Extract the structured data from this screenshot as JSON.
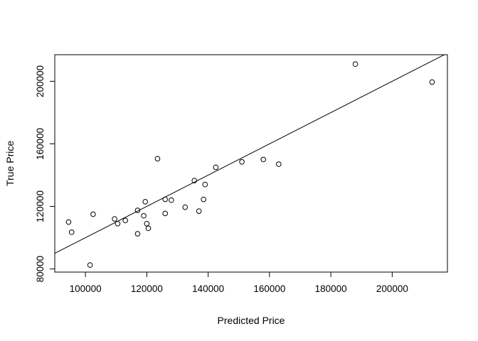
{
  "chart_data": {
    "type": "scatter",
    "title": "",
    "xlabel": "Predicted Price",
    "ylabel": "True Price",
    "xlim": [
      90000,
      218000
    ],
    "ylim": [
      78000,
      217000
    ],
    "x_ticks": [
      100000,
      120000,
      140000,
      160000,
      180000,
      200000
    ],
    "y_ticks": [
      80000,
      120000,
      160000,
      200000
    ],
    "x_tick_labels": [
      "100000",
      "120000",
      "140000",
      "160000",
      "180000",
      "200000"
    ],
    "y_tick_labels": [
      "80000",
      "120000",
      "160000",
      "200000"
    ],
    "grid": false,
    "legend": false,
    "fit_line": {
      "slope": 1.0,
      "intercept": 0
    },
    "points": [
      {
        "x": 94500,
        "y": 110000
      },
      {
        "x": 95500,
        "y": 103500
      },
      {
        "x": 101500,
        "y": 82500
      },
      {
        "x": 102500,
        "y": 115000
      },
      {
        "x": 109500,
        "y": 112000
      },
      {
        "x": 110500,
        "y": 109000
      },
      {
        "x": 113000,
        "y": 111000
      },
      {
        "x": 117000,
        "y": 117500
      },
      {
        "x": 117000,
        "y": 102500
      },
      {
        "x": 119000,
        "y": 114000
      },
      {
        "x": 119500,
        "y": 123000
      },
      {
        "x": 120000,
        "y": 109000
      },
      {
        "x": 120500,
        "y": 106000
      },
      {
        "x": 123500,
        "y": 150500
      },
      {
        "x": 126000,
        "y": 124500
      },
      {
        "x": 126000,
        "y": 115500
      },
      {
        "x": 128000,
        "y": 124000
      },
      {
        "x": 132500,
        "y": 119500
      },
      {
        "x": 135500,
        "y": 136500
      },
      {
        "x": 137000,
        "y": 117000
      },
      {
        "x": 138500,
        "y": 124500
      },
      {
        "x": 139000,
        "y": 134000
      },
      {
        "x": 142500,
        "y": 145000
      },
      {
        "x": 151000,
        "y": 148500
      },
      {
        "x": 158000,
        "y": 150000
      },
      {
        "x": 163000,
        "y": 147000
      },
      {
        "x": 188000,
        "y": 211000
      },
      {
        "x": 213000,
        "y": 199500
      }
    ]
  }
}
